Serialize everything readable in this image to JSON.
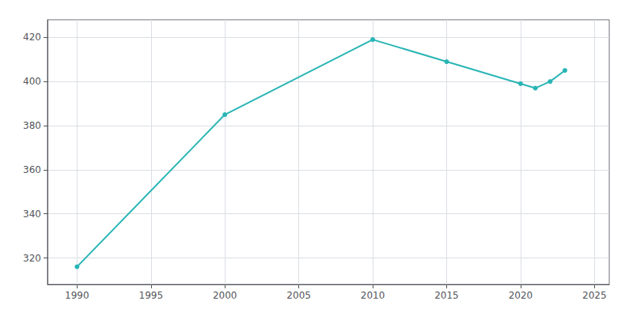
{
  "chart_data": {
    "type": "line",
    "x": [
      1990,
      2000,
      2010,
      2015,
      2020,
      2021,
      2022,
      2023
    ],
    "values": [
      316,
      385,
      419,
      409,
      399,
      397,
      400,
      405
    ],
    "color": "#2ab5b5",
    "marker": "circle",
    "xlim": [
      1988,
      2026
    ],
    "ylim": [
      308,
      428
    ],
    "xticks": [
      1990,
      1995,
      2000,
      2005,
      2010,
      2015,
      2020,
      2025
    ],
    "yticks": [
      320,
      340,
      360,
      380,
      400,
      420
    ],
    "grid": true
  }
}
